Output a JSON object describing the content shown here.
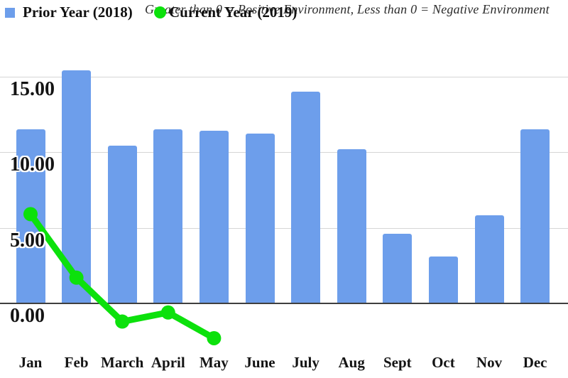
{
  "title": "Greater than 0 = Positive Environment, Less than 0 = Negative Environment",
  "legend": [
    {
      "label": "Prior Year (2018)",
      "marker": "square",
      "color": "#6d9eeb"
    },
    {
      "label": "Current Year (2019)",
      "marker": "circle",
      "color": "#0ce10c"
    }
  ],
  "chart_data": {
    "type": "bar",
    "title": "Greater than 0 = Positive Environment, Less than 0 = Negative Environment",
    "categories": [
      "Jan",
      "Feb",
      "March",
      "April",
      "May",
      "June",
      "July",
      "Aug",
      "Sept",
      "Oct",
      "Nov",
      "Dec"
    ],
    "series": [
      {
        "name": "Prior Year (2018)",
        "type": "bar",
        "color": "#6d9eeb",
        "values": [
          11.5,
          15.4,
          10.4,
          11.5,
          11.4,
          11.2,
          14.0,
          10.2,
          4.6,
          3.1,
          5.8,
          11.5
        ]
      },
      {
        "name": "Current Year (2019)",
        "type": "line",
        "color": "#0ce10c",
        "values": [
          5.9,
          1.7,
          -1.2,
          -0.6,
          -2.3,
          null,
          null,
          null,
          null,
          null,
          null,
          null
        ]
      }
    ],
    "y_ticks": [
      {
        "value": 0,
        "label": "0.00"
      },
      {
        "value": 5,
        "label": "5.00"
      },
      {
        "value": 10,
        "label": "10.00"
      },
      {
        "value": 15,
        "label": "15.00"
      }
    ],
    "ylim": [
      -3.5,
      17.5
    ],
    "xlabel": "",
    "ylabel": "",
    "grid": true,
    "legend_position": "top"
  }
}
